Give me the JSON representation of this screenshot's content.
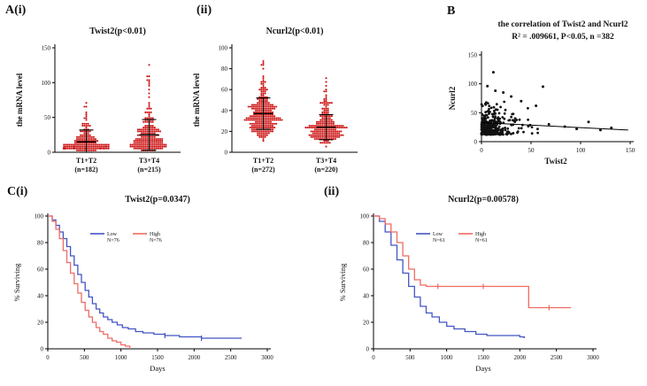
{
  "panel_labels": {
    "ai": "A(i)",
    "aii": "(ii)",
    "b": "B",
    "ci": "C(i)",
    "cii": "(ii)"
  },
  "chart_data": [
    {
      "id": "ai",
      "type": "scatter",
      "subtype": "column-dot",
      "title": "Twist2(p<0.01)",
      "ylabel": "the mRNA level",
      "ylim": [
        0,
        150
      ],
      "yticks": [
        0,
        50,
        100,
        150
      ],
      "point_color": "#cc1111",
      "categories": [
        "T1+T2",
        "T3+T4"
      ],
      "category_notes": [
        "(n=182)",
        "(n=215)"
      ],
      "groups": [
        {
          "n": 182,
          "median": 12,
          "mean": 15,
          "sd": 17,
          "log_mu": 2.5,
          "log_sigma": 0.75,
          "max": 78,
          "seed": 11
        },
        {
          "n": 215,
          "median": 20,
          "mean": 25,
          "sd": 22,
          "log_mu": 3.0,
          "log_sigma": 0.8,
          "max": 130,
          "seed": 22
        }
      ]
    },
    {
      "id": "aii",
      "type": "scatter",
      "subtype": "column-dot",
      "title": "Ncurl2(p<0.01)",
      "ylabel": "the mRNA level",
      "ylim": [
        0,
        100
      ],
      "yticks": [
        0,
        20,
        40,
        60,
        80,
        100
      ],
      "point_color": "#cc1111",
      "categories": [
        "T1+T2",
        "T3+T4"
      ],
      "category_notes": [
        "(n=272)",
        "(n=220)"
      ],
      "groups": [
        {
          "n": 272,
          "median": 35,
          "mean": 37,
          "sd": 15,
          "log_mu": 3.55,
          "log_sigma": 0.38,
          "max": 92,
          "seed": 33
        },
        {
          "n": 220,
          "median": 22,
          "mean": 24,
          "sd": 12,
          "log_mu": 3.1,
          "log_sigma": 0.45,
          "max": 75,
          "seed": 44
        }
      ]
    },
    {
      "id": "b",
      "type": "scatter",
      "title": "the correlation of Twist2 and Ncurl2",
      "subtitle": "R² = .009661, P<0.05, n =382",
      "xlabel": "Twist2",
      "ylabel": "Ncurl2",
      "xlim": [
        0,
        150
      ],
      "ylim": [
        0,
        150
      ],
      "xticks": [
        0,
        50,
        100,
        150
      ],
      "yticks": [
        0,
        50,
        100,
        150
      ],
      "n": 382,
      "point_color": "#111111",
      "cluster": {
        "x_scale": 11,
        "y_base": 12,
        "y_scale": 14,
        "seed": 7
      },
      "outliers": [
        [
          6,
          96
        ],
        [
          12,
          120
        ],
        [
          14,
          88
        ],
        [
          30,
          78
        ],
        [
          55,
          62
        ],
        [
          62,
          95
        ],
        [
          68,
          30
        ],
        [
          84,
          26
        ],
        [
          96,
          22
        ],
        [
          108,
          34
        ],
        [
          120,
          20
        ],
        [
          131,
          24
        ],
        [
          40,
          70
        ],
        [
          22,
          85
        ]
      ],
      "fit_line": {
        "x1": 0,
        "y1": 33,
        "x2": 148,
        "y2": 20
      }
    },
    {
      "id": "ci",
      "type": "line",
      "subtype": "km",
      "title": "Twist2(p=0.0347)",
      "xlabel": "Days",
      "ylabel": "% Surviving",
      "xlim": [
        0,
        3000
      ],
      "ylim": [
        0,
        100
      ],
      "xticks": [
        0,
        500,
        1000,
        1500,
        2000,
        2500,
        3000
      ],
      "yticks": [
        0,
        20,
        40,
        60,
        80,
        100
      ],
      "series": [
        {
          "name": "Low",
          "n_label": "N=76",
          "color": "#4255c4",
          "points": [
            [
              0,
              100
            ],
            [
              60,
              97
            ],
            [
              110,
              93
            ],
            [
              160,
              88
            ],
            [
              210,
              83
            ],
            [
              260,
              77
            ],
            [
              310,
              70
            ],
            [
              360,
              63
            ],
            [
              410,
              56
            ],
            [
              460,
              50
            ],
            [
              510,
              44
            ],
            [
              560,
              39
            ],
            [
              610,
              34
            ],
            [
              660,
              30
            ],
            [
              710,
              27
            ],
            [
              760,
              24
            ],
            [
              820,
              22
            ],
            [
              880,
              20
            ],
            [
              950,
              18
            ],
            [
              1020,
              16
            ],
            [
              1100,
              15
            ],
            [
              1200,
              13
            ],
            [
              1300,
              12
            ],
            [
              1450,
              11
            ],
            [
              1600,
              10
            ],
            [
              1800,
              9
            ],
            [
              2100,
              8
            ],
            [
              2650,
              8
            ]
          ],
          "censors": [
            [
              1600,
              10
            ],
            [
              2100,
              8
            ]
          ]
        },
        {
          "name": "High",
          "n_label": "N=76",
          "color": "#ef6b63",
          "points": [
            [
              0,
              100
            ],
            [
              60,
              96
            ],
            [
              110,
              90
            ],
            [
              160,
              83
            ],
            [
              210,
              74
            ],
            [
              260,
              65
            ],
            [
              310,
              57
            ],
            [
              360,
              49
            ],
            [
              410,
              42
            ],
            [
              460,
              35
            ],
            [
              510,
              29
            ],
            [
              560,
              24
            ],
            [
              610,
              20
            ],
            [
              660,
              16
            ],
            [
              710,
              13
            ],
            [
              760,
              11
            ],
            [
              820,
              8
            ],
            [
              880,
              6
            ],
            [
              940,
              5
            ],
            [
              1000,
              3
            ],
            [
              1060,
              2
            ],
            [
              1120,
              0
            ]
          ],
          "censors": []
        }
      ]
    },
    {
      "id": "cii",
      "type": "line",
      "subtype": "km",
      "title": "Ncurl2(p=0.00578)",
      "xlabel": "Days",
      "ylabel": "% Surviving",
      "xlim": [
        0,
        3000
      ],
      "ylim": [
        0,
        100
      ],
      "xticks": [
        0,
        500,
        1000,
        1500,
        2000,
        2500,
        3000
      ],
      "yticks": [
        0,
        20,
        40,
        60,
        80,
        100
      ],
      "series": [
        {
          "name": "Low",
          "n_label": "N=61",
          "color": "#4255c4",
          "points": [
            [
              0,
              100
            ],
            [
              80,
              96
            ],
            [
              160,
              88
            ],
            [
              240,
              78
            ],
            [
              320,
              67
            ],
            [
              400,
              57
            ],
            [
              480,
              47
            ],
            [
              560,
              39
            ],
            [
              640,
              32
            ],
            [
              720,
              27
            ],
            [
              800,
              24
            ],
            [
              900,
              20
            ],
            [
              1000,
              17
            ],
            [
              1100,
              15
            ],
            [
              1250,
              13
            ],
            [
              1400,
              11
            ],
            [
              1550,
              10
            ],
            [
              1800,
              10
            ],
            [
              2000,
              9
            ],
            [
              2060,
              8
            ]
          ],
          "censors": []
        },
        {
          "name": "High",
          "n_label": "N=61",
          "color": "#ef6b63",
          "points": [
            [
              0,
              100
            ],
            [
              80,
              98
            ],
            [
              160,
              94
            ],
            [
              240,
              88
            ],
            [
              320,
              80
            ],
            [
              400,
              70
            ],
            [
              480,
              60
            ],
            [
              560,
              52
            ],
            [
              640,
              48
            ],
            [
              720,
              47
            ],
            [
              2080,
              47
            ],
            [
              2120,
              31
            ],
            [
              2700,
              31
            ]
          ],
          "censors": [
            [
              880,
              47
            ],
            [
              1500,
              47
            ],
            [
              2400,
              31
            ]
          ]
        }
      ]
    }
  ]
}
